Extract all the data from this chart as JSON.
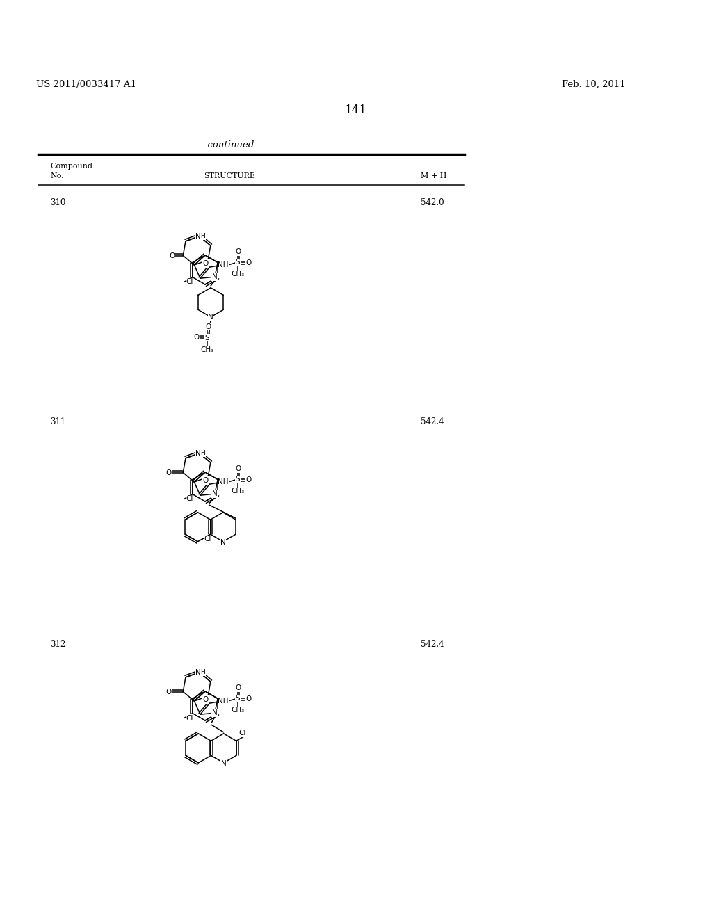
{
  "patent_number": "US 2011/0033417 A1",
  "patent_date": "Feb. 10, 2011",
  "page_number": "141",
  "table_continued": "-continued",
  "col_compound": "Compound\nNo.",
  "col_structure": "STRUCTURE",
  "col_mh": "M + H",
  "compounds": [
    {
      "no": "310",
      "mh": "542.0"
    },
    {
      "no": "311",
      "mh": "542.4"
    },
    {
      "no": "312",
      "mh": "542.4"
    }
  ],
  "bg": "#ffffff",
  "fg": "#000000"
}
